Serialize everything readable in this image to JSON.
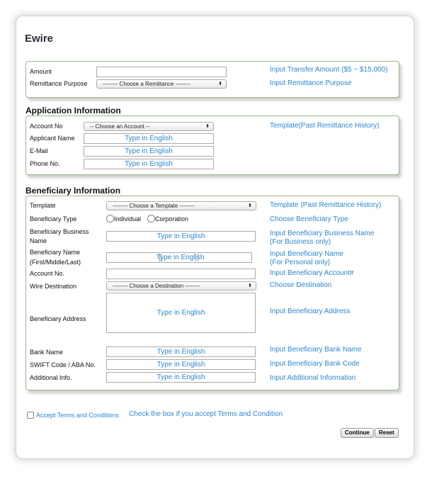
{
  "title": "Ewire",
  "transfer": {
    "amount_label": "Amount",
    "amount_value": "",
    "amount_hint": "Input Transfer Amount ($5 ~ $15,000)",
    "purpose_label": "Remittance Purpose",
    "purpose_select": "-------- Choose a Remittance --------",
    "purpose_hint": "Input Remittance Purpose"
  },
  "application": {
    "heading": "Application Information",
    "account_label": "Account No",
    "account_select": "-- Choose an Account --",
    "account_hint": "Template(Past Remittance History)",
    "name_label": "Applicant Name",
    "email_label": "E-Mail",
    "phone_label": "Phone No.",
    "placeholder": "Type in English"
  },
  "beneficiary": {
    "heading": "Beneficiary Information",
    "placeholder": "Type in English",
    "template_label": "Template",
    "template_select": "-------- Choose a Template --------",
    "template_hint": "Template (Past Remittance History)",
    "type_label": "Beneficiary Type",
    "type_individual": "Individual",
    "type_corporation": "Corporation",
    "type_hint": "Choose Beneficiary Type",
    "business_label": "Beneficiary Business Name",
    "business_hint1": "Input Beneficiary Business Name",
    "business_hint2": "(For Business only)",
    "name_label1": "Beneficiary Name",
    "name_label2": "(First/Middle/Last)",
    "name_hint1": "Input Beneficiary Name",
    "name_hint2": "(For Personal only)",
    "account_label": "Account No.",
    "account_hint": "Input Beneficiary Account#",
    "dest_label": "Wire Destination",
    "dest_select": "-------- Choose a Destination --------",
    "dest_hint": "Choose Destination",
    "address_label": "Beneficiary Address",
    "address_hint": "Input Beneficiary Address",
    "bank_label": "Bank Name",
    "bank_hint": "Input Beneficiary Bank Name",
    "swift_label": "SWIFT Code / ABA No.",
    "swift_hint": "Input Beneficiary Bank Code",
    "info_label": "Additional Info.",
    "info_hint": "Input Additional Information"
  },
  "terms": {
    "label": "Accept Terms and Conditions",
    "hint": "Check the box if you accept Terms and Condition",
    "checked": false
  },
  "buttons": {
    "continue": "Continue",
    "reset": "Reset"
  }
}
